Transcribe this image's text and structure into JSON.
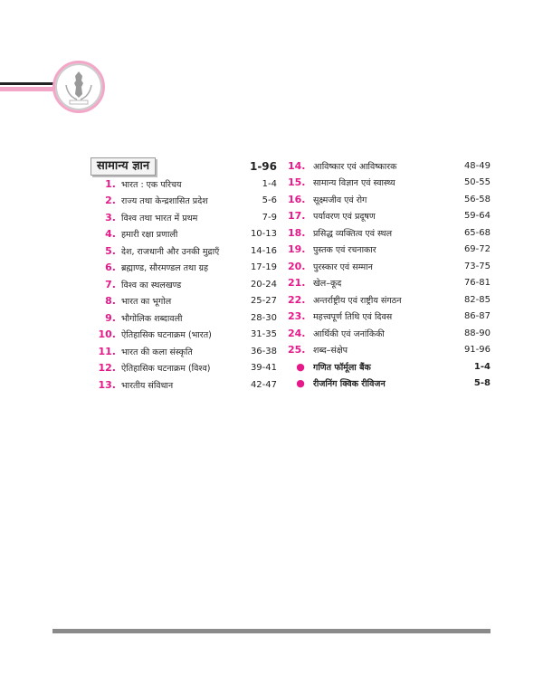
{
  "logo": {
    "motto": "सत्यमेव जयते",
    "accent_color": "#f4a6c8"
  },
  "section": {
    "title": "सामान्य ज्ञान",
    "pages": "1-96"
  },
  "left_items": [
    {
      "num": "1.",
      "title": "भारत : एक परिचय",
      "pages": "1-4"
    },
    {
      "num": "2.",
      "title": "राज्य तथा केन्द्रशासित प्रदेश",
      "pages": "5-6"
    },
    {
      "num": "3.",
      "title": "विश्व तथा भारत में प्रथम",
      "pages": "7-9"
    },
    {
      "num": "4.",
      "title": "हमारी रक्षा प्रणाली",
      "pages": "10-13"
    },
    {
      "num": "5.",
      "title": "देश, राजधानी और उनकी मुद्राएँ",
      "pages": "14-16"
    },
    {
      "num": "6.",
      "title": "ब्रह्माण्ड, सौरमण्डल तथा ग्रह",
      "pages": "17-19"
    },
    {
      "num": "7.",
      "title": "विश्व का स्थलखण्ड",
      "pages": "20-24"
    },
    {
      "num": "8.",
      "title": "भारत का भूगोल",
      "pages": "25-27"
    },
    {
      "num": "9.",
      "title": "भौगोलिक शब्दावली",
      "pages": "28-30"
    },
    {
      "num": "10.",
      "title": "ऐतिहासिक घटनाक्रम (भारत)",
      "pages": "31-35"
    },
    {
      "num": "11.",
      "title": "भारत की कला संस्कृति",
      "pages": "36-38"
    },
    {
      "num": "12.",
      "title": "ऐतिहासिक घटनाक्रम (विश्व)",
      "pages": "39-41"
    },
    {
      "num": "13.",
      "title": "भारतीय संविधान",
      "pages": "42-47"
    }
  ],
  "right_items": [
    {
      "num": "14.",
      "title": "आविष्कार एवं आविष्कारक",
      "pages": "48-49"
    },
    {
      "num": "15.",
      "title": "सामान्य विज्ञान एवं स्वास्थ्य",
      "pages": "50-55"
    },
    {
      "num": "16.",
      "title": "सूक्ष्मजीव एवं रोग",
      "pages": "56-58"
    },
    {
      "num": "17.",
      "title": "पर्यावरण एवं प्रदूषण",
      "pages": "59-64"
    },
    {
      "num": "18.",
      "title": "प्रसिद्ध व्यक्तित्व एवं स्थल",
      "pages": "65-68"
    },
    {
      "num": "19.",
      "title": "पुस्तक एवं रचनाकार",
      "pages": "69-72"
    },
    {
      "num": "20.",
      "title": "पुरस्कार एवं सम्मान",
      "pages": "73-75"
    },
    {
      "num": "21.",
      "title": "खेल–कूद",
      "pages": "76-81"
    },
    {
      "num": "22.",
      "title": "अन्तर्राष्ट्रीय एवं राष्ट्रीय संगठन",
      "pages": "82-85"
    },
    {
      "num": "23.",
      "title": "महत्त्वपूर्ण तिथि एवं दिवस",
      "pages": "86-87"
    },
    {
      "num": "24.",
      "title": "आर्थिकी एवं जनांकिकी",
      "pages": "88-90"
    },
    {
      "num": "25.",
      "title": "शब्द–संक्षेप",
      "pages": "91-96"
    }
  ],
  "extras": [
    {
      "bullet": "●",
      "title": "गणित फॉर्मूला बैंक",
      "pages": "1-4"
    },
    {
      "bullet": "●",
      "title": "रीजनिंग क्विक रीविजन",
      "pages": "5-8"
    }
  ]
}
